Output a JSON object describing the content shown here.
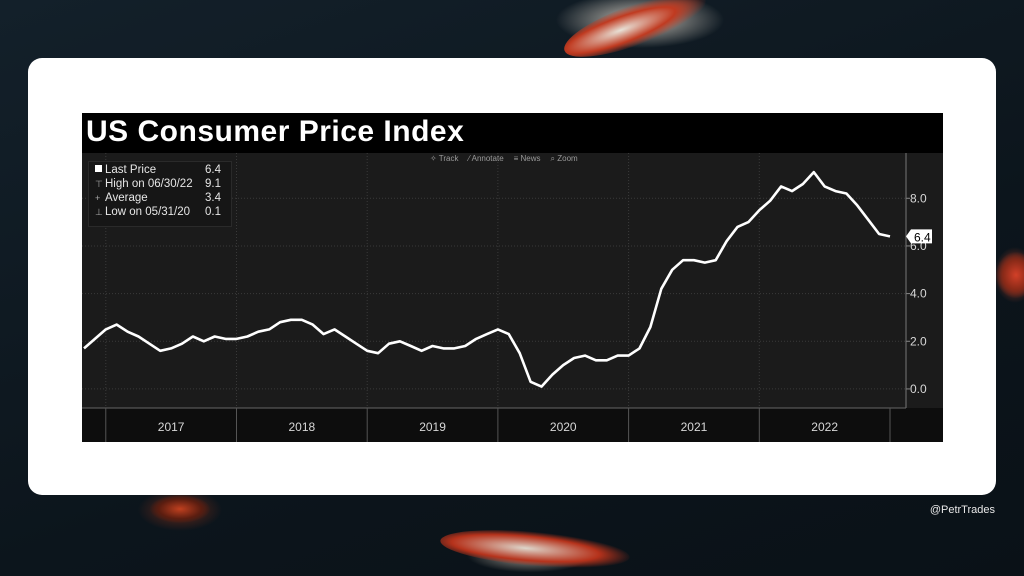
{
  "handle": "@PetrTrades",
  "toolbar": [
    "Track",
    "Annotate",
    "News",
    "Zoom"
  ],
  "legend": {
    "last_label": "Last Price",
    "last_value": "6.4",
    "high_label": "High on 06/30/22",
    "high_value": "9.1",
    "avg_label": "Average",
    "avg_value": "3.4",
    "low_label": "Low on 05/31/20",
    "low_value": "0.1"
  },
  "colors": {
    "line": "#ffffff",
    "background": "#1b1b1b",
    "frame": "#000000"
  },
  "chart_data": {
    "type": "line",
    "title": "US Consumer Price Index",
    "x_axis_labels": [
      "2017",
      "2018",
      "2019",
      "2020",
      "2021",
      "2022"
    ],
    "y_ticks": [
      "0.0",
      "2.0",
      "4.0",
      "6.0",
      "8.0"
    ],
    "ylim": [
      -0.8,
      9.9
    ],
    "last_value_label": "6.4",
    "grid": true,
    "series": [
      {
        "x": [
          "2016-11",
          "2016-12",
          "2017-01",
          "2017-02",
          "2017-03",
          "2017-04",
          "2017-05",
          "2017-06",
          "2017-07",
          "2017-08",
          "2017-09",
          "2017-10",
          "2017-11",
          "2017-12",
          "2018-01",
          "2018-02",
          "2018-03",
          "2018-04",
          "2018-05",
          "2018-06",
          "2018-07",
          "2018-08",
          "2018-09",
          "2018-10",
          "2018-11",
          "2018-12",
          "2019-01",
          "2019-02",
          "2019-03",
          "2019-04",
          "2019-05",
          "2019-06",
          "2019-07",
          "2019-08",
          "2019-09",
          "2019-10",
          "2019-11",
          "2019-12",
          "2020-01",
          "2020-02",
          "2020-03",
          "2020-04",
          "2020-05",
          "2020-06",
          "2020-07",
          "2020-08",
          "2020-09",
          "2020-10",
          "2020-11",
          "2020-12",
          "2021-01",
          "2021-02",
          "2021-03",
          "2021-04",
          "2021-05",
          "2021-06",
          "2021-07",
          "2021-08",
          "2021-09",
          "2021-10",
          "2021-11",
          "2021-12",
          "2022-01",
          "2022-02",
          "2022-03",
          "2022-04",
          "2022-05",
          "2022-06",
          "2022-07",
          "2022-08",
          "2022-09",
          "2022-10",
          "2022-11",
          "2022-12",
          "2023-01"
        ],
        "values": [
          1.7,
          2.1,
          2.5,
          2.7,
          2.4,
          2.2,
          1.9,
          1.6,
          1.7,
          1.9,
          2.2,
          2.0,
          2.2,
          2.1,
          2.1,
          2.2,
          2.4,
          2.5,
          2.8,
          2.9,
          2.9,
          2.7,
          2.3,
          2.5,
          2.2,
          1.9,
          1.6,
          1.5,
          1.9,
          2.0,
          1.8,
          1.6,
          1.8,
          1.7,
          1.7,
          1.8,
          2.1,
          2.3,
          2.5,
          2.3,
          1.5,
          0.3,
          0.1,
          0.6,
          1.0,
          1.3,
          1.4,
          1.2,
          1.2,
          1.4,
          1.4,
          1.7,
          2.6,
          4.2,
          5.0,
          5.4,
          5.4,
          5.3,
          5.4,
          6.2,
          6.8,
          7.0,
          7.5,
          7.9,
          8.5,
          8.3,
          8.6,
          9.1,
          8.5,
          8.3,
          8.2,
          7.7,
          7.1,
          6.5,
          6.4
        ]
      }
    ]
  }
}
